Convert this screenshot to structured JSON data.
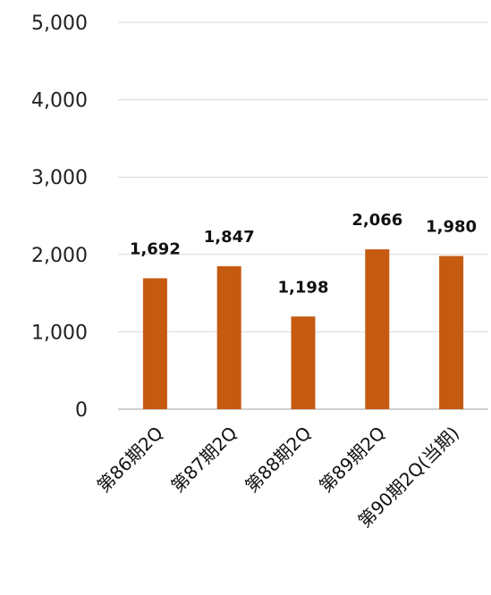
{
  "chart_data": {
    "type": "bar",
    "title": "",
    "xlabel": "",
    "ylabel": "",
    "categories": [
      "第86期2Q",
      "第87期2Q",
      "第88期2Q",
      "第89期2Q",
      "第90期2Q(当期)"
    ],
    "values": [
      1692,
      1847,
      1198,
      2066,
      1980
    ],
    "data_labels": [
      "1,692",
      "1,847",
      "1,198",
      "2,066",
      "1,980"
    ],
    "ylim": [
      0,
      5000
    ],
    "yticks": [
      0,
      1000,
      2000,
      3000,
      4000,
      5000
    ],
    "ytick_labels": [
      "0",
      "1,000",
      "2,000",
      "3,000",
      "4,000",
      "5,000"
    ],
    "grid": true,
    "legend": "none",
    "colors": {
      "bar": "#C55A11",
      "grid": "#D9D9D9",
      "axis": "#BFBFBF"
    }
  }
}
